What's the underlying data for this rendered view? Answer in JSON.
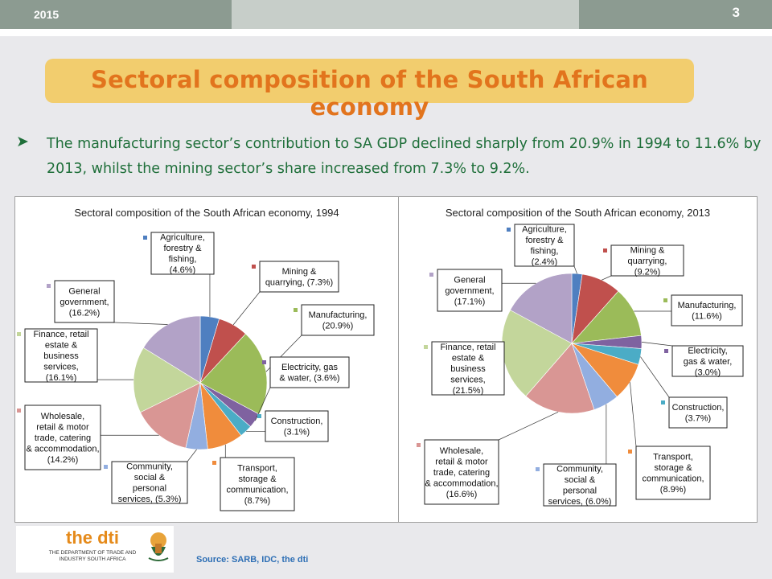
{
  "header": {
    "year": "2015",
    "page_number": "3"
  },
  "title": "Sectoral composition of the South African economy",
  "bullet": "The manufacturing sector’s contribution to SA GDP declined sharply from 20.9% in 1994 to 11.6% by 2013, whilst the mining sector’s share increased from 7.3% to 9.2%.",
  "logo": {
    "text": "the dti",
    "subtitle": "THE DEPARTMENT OF TRADE AND INDUSTRY SOUTH AFRICA"
  },
  "source": "Source: SARB, IDC, the dti",
  "chart_data": [
    {
      "type": "pie",
      "title": "Sectoral composition of the South African economy, 1994",
      "series": [
        {
          "label": "Agriculture, forestry & fishing, (4.6%)",
          "value": 4.6,
          "color": "#4f7fc0"
        },
        {
          "label": "Mining & quarrying, (7.3%)",
          "value": 7.3,
          "color": "#c0504d"
        },
        {
          "label": "Manufacturing, (20.9%)",
          "value": 20.9,
          "color": "#9bbb59"
        },
        {
          "label": "Electricity, gas & water, (3.6%)",
          "value": 3.6,
          "color": "#7f62a0"
        },
        {
          "label": "Construction, (3.1%)",
          "value": 3.1,
          "color": "#4bacc6"
        },
        {
          "label": "Transport, storage & communication, (8.7%)",
          "value": 8.7,
          "color": "#f08c3c"
        },
        {
          "label": "Community, social & personal services, (5.3%)",
          "value": 5.3,
          "color": "#92aee0"
        },
        {
          "label": "Wholesale, retail & motor trade, catering & accommodation, (14.2%)",
          "value": 14.2,
          "color": "#d99694"
        },
        {
          "label": "Finance, retail estate & business services, (16.1%)",
          "value": 16.1,
          "color": "#c3d69b"
        },
        {
          "label": "General government, (16.2%)",
          "value": 16.2,
          "color": "#b2a2c7"
        }
      ]
    },
    {
      "type": "pie",
      "title": "Sectoral composition of the South African economy, 2013",
      "series": [
        {
          "label": "Agriculture, forestry & fishing, (2.4%)",
          "value": 2.4,
          "color": "#4f7fc0"
        },
        {
          "label": "Mining & quarrying, (9.2%)",
          "value": 9.2,
          "color": "#c0504d"
        },
        {
          "label": "Manufacturing, (11.6%)",
          "value": 11.6,
          "color": "#9bbb59"
        },
        {
          "label": "Electricity, gas & water, (3.0%)",
          "value": 3.0,
          "color": "#7f62a0"
        },
        {
          "label": "Construction, (3.7%)",
          "value": 3.7,
          "color": "#4bacc6"
        },
        {
          "label": "Transport, storage & communication, (8.9%)",
          "value": 8.9,
          "color": "#f08c3c"
        },
        {
          "label": "Community, social & personal services, (6.0%)",
          "value": 6.0,
          "color": "#92aee0"
        },
        {
          "label": "Wholesale, retail & motor trade, catering & accommodation, (16.6%)",
          "value": 16.6,
          "color": "#d99694"
        },
        {
          "label": "Finance, retail estate & business services, (21.5%)",
          "value": 21.5,
          "color": "#c3d69b"
        },
        {
          "label": "General government, (17.1%)",
          "value": 17.1,
          "color": "#b2a2c7"
        }
      ]
    }
  ]
}
